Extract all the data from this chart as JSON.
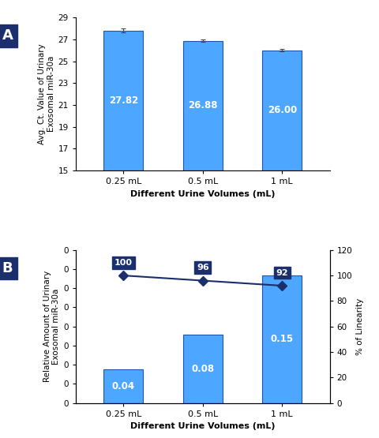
{
  "panel_A": {
    "categories": [
      "0.25 mL",
      "0.5 mL",
      "1 mL"
    ],
    "values": [
      27.82,
      26.88,
      26.0
    ],
    "errors": [
      0.15,
      0.12,
      0.1
    ],
    "bar_color": "#4da6ff",
    "bar_edgecolor": "#2255aa",
    "ylim": [
      15,
      29
    ],
    "yticks": [
      15,
      17,
      19,
      21,
      23,
      25,
      27,
      29
    ],
    "ylabel": "Avg. Ct. Value of Urinary\nExosomal miR-30a",
    "xlabel": "Different Urine Volumes (mL)",
    "label_color": "#ffffff",
    "label_fontsize": 8.5,
    "panel_label": "A"
  },
  "panel_B": {
    "categories": [
      "0.25 mL",
      "0.5 mL",
      "1 mL"
    ],
    "bar_values": [
      0.04,
      0.08,
      0.15
    ],
    "bar_color": "#4da6ff",
    "bar_edgecolor": "#2255aa",
    "bar_ylim": [
      0,
      0.18
    ],
    "bar_yticks": [
      0,
      0,
      0,
      0,
      0,
      0,
      0,
      0,
      0
    ],
    "bar_ylabel": "Relative Amount of Urinary\nExosomal miR-30a",
    "line_values": [
      100,
      96,
      92
    ],
    "line_color": "#1a2f6b",
    "line_marker": "D",
    "line_markersize": 6,
    "line_ylim": [
      0,
      120
    ],
    "line_yticks": [
      0,
      20,
      40,
      60,
      80,
      100,
      120
    ],
    "line_ylabel": "% of Linearity",
    "xlabel": "Different Urine Volumes (mL)",
    "label_color": "#ffffff",
    "label_fontsize": 8.5,
    "annotation_bg": "#1a2f6b",
    "annotation_color": "#ffffff",
    "annotation_fontsize": 8,
    "panel_label": "B"
  },
  "panel_label_bg": "#1a2f6b",
  "panel_label_color": "#ffffff",
  "panel_label_fontsize": 13,
  "figure_bg": "#ffffff",
  "border_color": "#000000"
}
